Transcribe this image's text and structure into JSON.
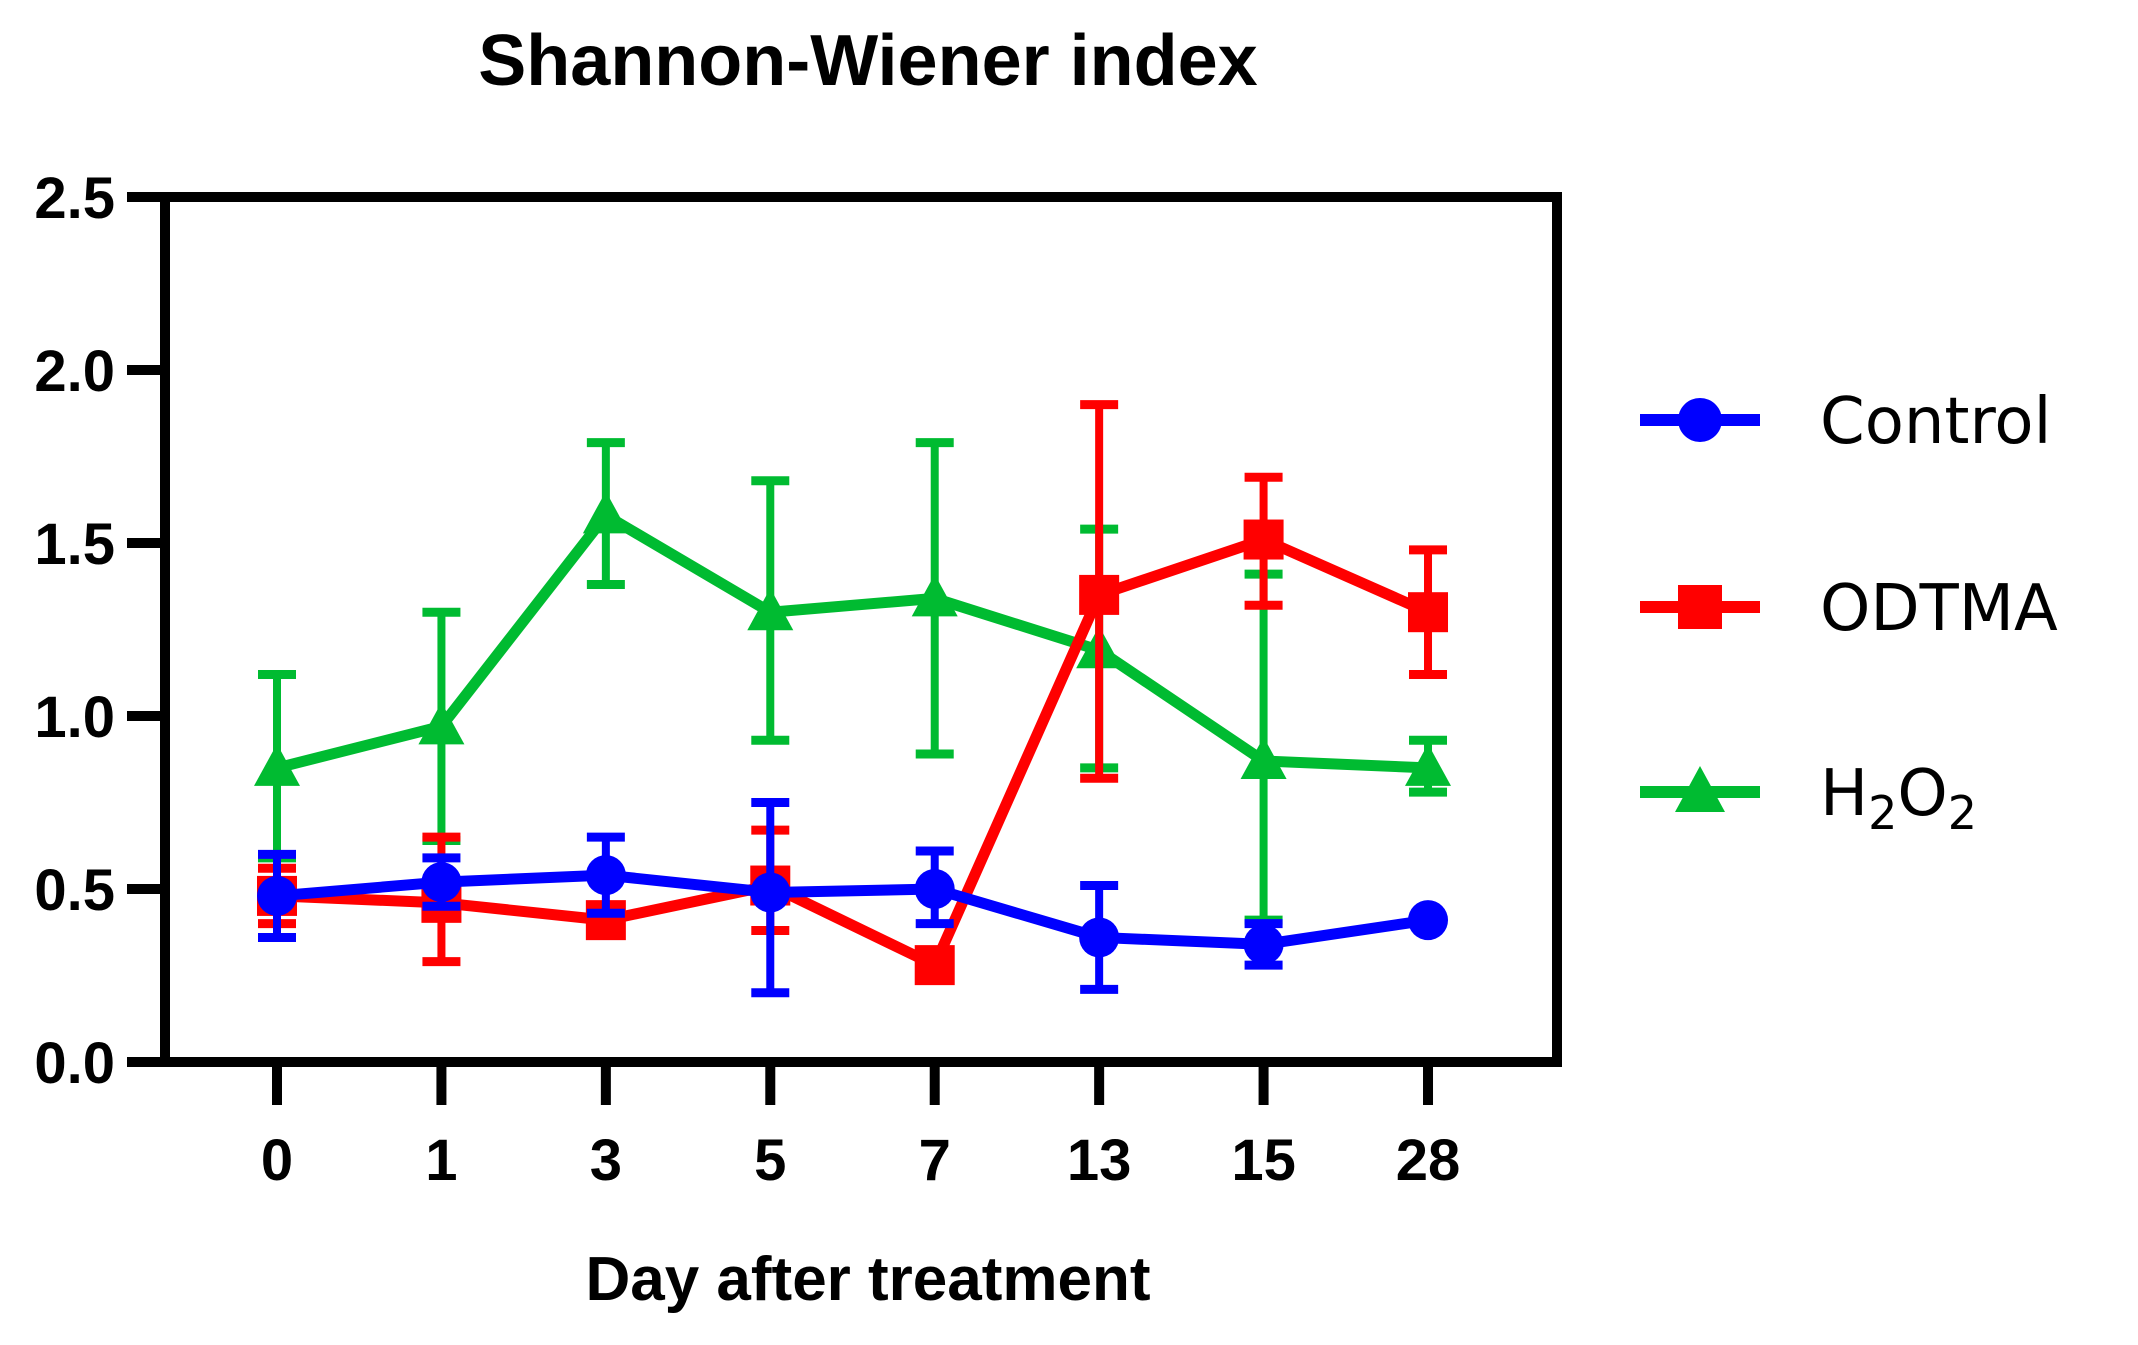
{
  "chart_data": {
    "type": "line",
    "title": "Shannon-Wiener index",
    "xlabel": "Day after treatment",
    "ylabel": "",
    "categories": [
      "0",
      "1",
      "3",
      "5",
      "7",
      "13",
      "15",
      "28"
    ],
    "y_ticks": [
      "0.0",
      "0.5",
      "1.0",
      "1.5",
      "2.0",
      "2.5"
    ],
    "y_tick_values": [
      0,
      0.5,
      1.0,
      1.5,
      2.0,
      2.5
    ],
    "ylim": [
      0,
      2.5
    ],
    "grid": false,
    "error_bars": true,
    "legend_position": "right",
    "axis_color": "#000000",
    "background_color": "#ffffff",
    "series": [
      {
        "name": "Control",
        "label": "Control",
        "label_rich": [
          {
            "text": "Control",
            "sub": false
          }
        ],
        "color": "#0000FF",
        "marker": "circle",
        "values": [
          0.48,
          0.52,
          0.54,
          0.49,
          0.5,
          0.36,
          0.34,
          0.41
        ],
        "errors": [
          [
            0.36,
            0.6
          ],
          [
            0.45,
            0.59
          ],
          [
            0.43,
            0.65
          ],
          [
            0.2,
            0.75
          ],
          [
            0.4,
            0.61
          ],
          [
            0.21,
            0.51
          ],
          [
            0.28,
            0.4
          ],
          null
        ]
      },
      {
        "name": "ODTMA",
        "label": "ODTMA",
        "label_rich": [
          {
            "text": "ODTMA",
            "sub": false
          }
        ],
        "color": "#FF0000",
        "marker": "square",
        "values": [
          0.48,
          0.46,
          0.41,
          0.51,
          0.28,
          1.35,
          1.51,
          1.3
        ],
        "errors": [
          [
            0.4,
            0.56
          ],
          [
            0.29,
            0.65
          ],
          null,
          [
            0.38,
            0.67
          ],
          null,
          [
            0.82,
            1.9
          ],
          [
            1.32,
            1.69
          ],
          [
            1.12,
            1.48
          ]
        ]
      },
      {
        "name": "H2O2",
        "label": "H2O2",
        "label_rich": [
          {
            "text": "H",
            "sub": false
          },
          {
            "text": "2",
            "sub": true
          },
          {
            "text": "O",
            "sub": false
          },
          {
            "text": "2",
            "sub": true
          }
        ],
        "color": "#00BB31",
        "marker": "triangle",
        "values": [
          0.85,
          0.97,
          1.58,
          1.3,
          1.34,
          1.19,
          0.87,
          0.85
        ],
        "errors": [
          [
            0.59,
            1.12
          ],
          [
            0.64,
            1.3
          ],
          [
            1.38,
            1.79
          ],
          [
            0.93,
            1.68
          ],
          [
            0.89,
            1.79
          ],
          [
            0.85,
            1.54
          ],
          [
            0.41,
            1.41
          ],
          [
            0.78,
            0.93
          ]
        ]
      }
    ]
  }
}
